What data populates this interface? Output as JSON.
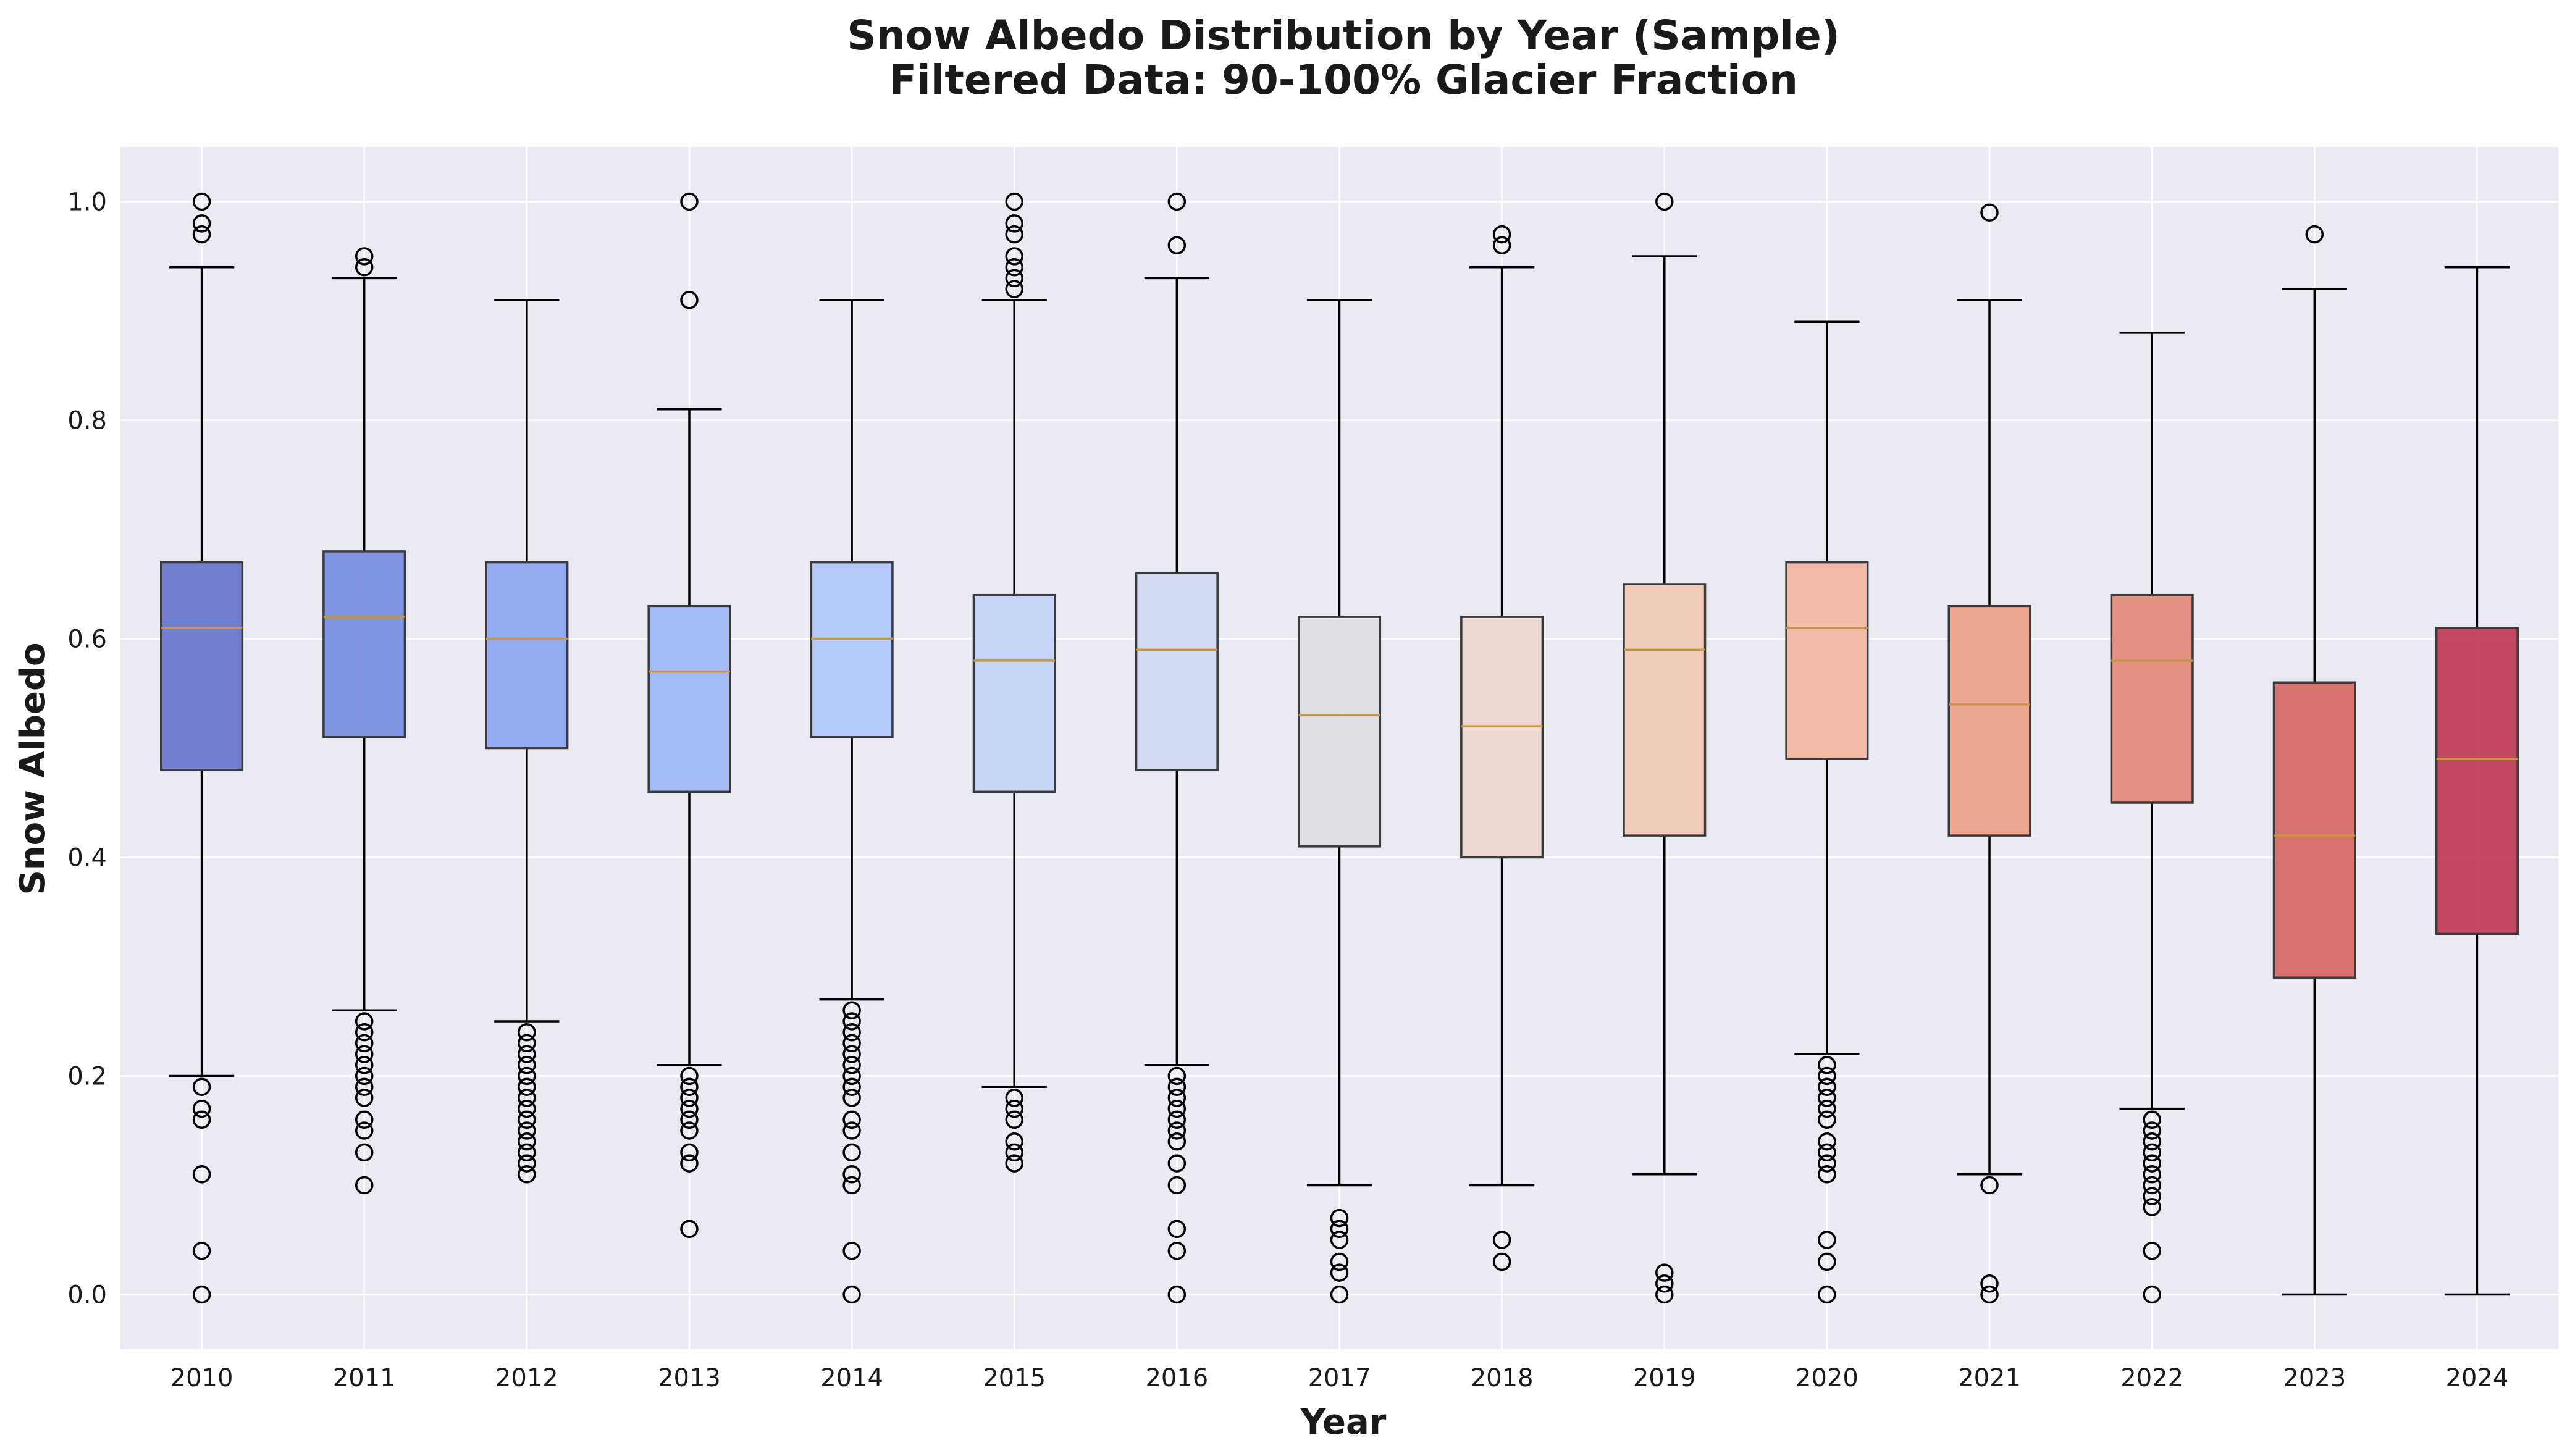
{
  "chart_data": {
    "type": "box",
    "title": "Snow Albedo Distribution by Year (Sample)",
    "subtitle": "Filtered Data: 90-100% Glacier Fraction",
    "xlabel": "Year",
    "ylabel": "Snow Albedo",
    "ylim": [
      -0.05,
      1.05
    ],
    "yticks": [
      "0.0",
      "0.2",
      "0.4",
      "0.6",
      "0.8",
      "1.0"
    ],
    "grid": true,
    "categories": [
      "2010",
      "2011",
      "2012",
      "2013",
      "2014",
      "2015",
      "2016",
      "2017",
      "2018",
      "2019",
      "2020",
      "2021",
      "2022",
      "2023",
      "2024"
    ],
    "boxes": [
      {
        "category": "2010",
        "whisker_low": 0.2,
        "q1": 0.48,
        "median": 0.61,
        "q3": 0.67,
        "whisker_high": 0.94,
        "outliers": [
          0.0,
          0.04,
          0.11,
          0.16,
          0.17,
          0.19,
          0.97,
          0.98,
          1.0
        ],
        "color": "#6b78cc"
      },
      {
        "category": "2011",
        "whisker_low": 0.26,
        "q1": 0.51,
        "median": 0.62,
        "q3": 0.68,
        "whisker_high": 0.93,
        "outliers": [
          0.1,
          0.13,
          0.15,
          0.16,
          0.18,
          0.19,
          0.2,
          0.21,
          0.22,
          0.23,
          0.24,
          0.25,
          0.94,
          0.95
        ],
        "color": "#7b8fe0"
      },
      {
        "category": "2012",
        "whisker_low": 0.25,
        "q1": 0.5,
        "median": 0.6,
        "q3": 0.67,
        "whisker_high": 0.91,
        "outliers": [
          0.11,
          0.12,
          0.13,
          0.14,
          0.15,
          0.16,
          0.17,
          0.18,
          0.19,
          0.2,
          0.21,
          0.22,
          0.23,
          0.24
        ],
        "color": "#8da6ee"
      },
      {
        "category": "2013",
        "whisker_low": 0.21,
        "q1": 0.46,
        "median": 0.57,
        "q3": 0.63,
        "whisker_high": 0.81,
        "outliers": [
          0.06,
          0.12,
          0.13,
          0.15,
          0.16,
          0.17,
          0.18,
          0.19,
          0.2,
          0.91,
          1.0
        ],
        "color": "#a0b8f6"
      },
      {
        "category": "2014",
        "whisker_low": 0.27,
        "q1": 0.51,
        "median": 0.6,
        "q3": 0.67,
        "whisker_high": 0.91,
        "outliers": [
          0.0,
          0.04,
          0.1,
          0.11,
          0.13,
          0.15,
          0.16,
          0.18,
          0.19,
          0.2,
          0.21,
          0.22,
          0.23,
          0.24,
          0.25,
          0.26
        ],
        "color": "#b2c8fa"
      },
      {
        "category": "2015",
        "whisker_low": 0.19,
        "q1": 0.46,
        "median": 0.58,
        "q3": 0.64,
        "whisker_high": 0.91,
        "outliers": [
          0.12,
          0.13,
          0.14,
          0.16,
          0.17,
          0.18,
          0.92,
          0.93,
          0.94,
          0.95,
          0.97,
          0.98,
          1.0
        ],
        "color": "#c3d3f7"
      },
      {
        "category": "2016",
        "whisker_low": 0.21,
        "q1": 0.48,
        "median": 0.59,
        "q3": 0.66,
        "whisker_high": 0.93,
        "outliers": [
          0.0,
          0.04,
          0.06,
          0.1,
          0.12,
          0.14,
          0.15,
          0.16,
          0.17,
          0.18,
          0.19,
          0.2,
          0.96,
          1.0
        ],
        "color": "#d2dbf0"
      },
      {
        "category": "2017",
        "whisker_low": 0.1,
        "q1": 0.41,
        "median": 0.53,
        "q3": 0.62,
        "whisker_high": 0.91,
        "outliers": [
          0.0,
          0.02,
          0.03,
          0.05,
          0.06,
          0.07
        ],
        "color": "#dfdfe3"
      },
      {
        "category": "2018",
        "whisker_low": 0.1,
        "q1": 0.4,
        "median": 0.52,
        "q3": 0.62,
        "whisker_high": 0.94,
        "outliers": [
          0.03,
          0.05,
          0.96,
          0.97
        ],
        "color": "#ecd8d0"
      },
      {
        "category": "2019",
        "whisker_low": 0.11,
        "q1": 0.42,
        "median": 0.59,
        "q3": 0.65,
        "whisker_high": 0.95,
        "outliers": [
          0.0,
          0.01,
          0.02,
          1.0
        ],
        "color": "#f2cbba"
      },
      {
        "category": "2020",
        "whisker_low": 0.22,
        "q1": 0.49,
        "median": 0.61,
        "q3": 0.67,
        "whisker_high": 0.89,
        "outliers": [
          0.0,
          0.03,
          0.05,
          0.11,
          0.12,
          0.13,
          0.14,
          0.16,
          0.17,
          0.18,
          0.19,
          0.2,
          0.21
        ],
        "color": "#f3b7a1"
      },
      {
        "category": "2021",
        "whisker_low": 0.11,
        "q1": 0.42,
        "median": 0.54,
        "q3": 0.63,
        "whisker_high": 0.91,
        "outliers": [
          0.0,
          0.01,
          0.1,
          0.99
        ],
        "color": "#eda38b"
      },
      {
        "category": "2022",
        "whisker_low": 0.17,
        "q1": 0.45,
        "median": 0.58,
        "q3": 0.64,
        "whisker_high": 0.88,
        "outliers": [
          0.0,
          0.04,
          0.08,
          0.09,
          0.1,
          0.11,
          0.12,
          0.13,
          0.14,
          0.15,
          0.16
        ],
        "color": "#e38c7b"
      },
      {
        "category": "2023",
        "whisker_low": 0.0,
        "q1": 0.29,
        "median": 0.42,
        "q3": 0.56,
        "whisker_high": 0.92,
        "outliers": [
          0.97
        ],
        "color": "#d66b67"
      },
      {
        "category": "2024",
        "whisker_low": 0.0,
        "q1": 0.33,
        "median": 0.49,
        "q3": 0.61,
        "whisker_high": 0.94,
        "outliers": [],
        "color": "#c2405d"
      }
    ],
    "colors": {
      "plot_background": "#eaeaf2",
      "grid": "#ffffff",
      "median": "#c8963e",
      "box_edge": "#3a3a3a",
      "whisker": "#000000"
    }
  }
}
